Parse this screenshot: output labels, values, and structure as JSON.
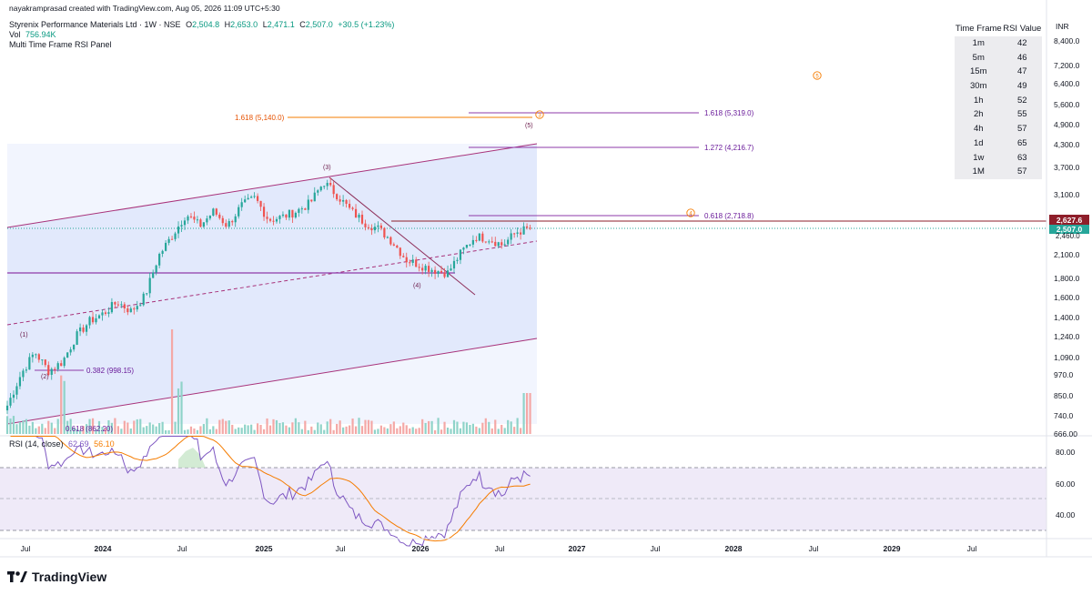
{
  "header": {
    "author_line": "nayakramprasad created with TradingView.com, Aug 05, 2026 11:09 UTC+5:30",
    "symbol": "Styrenix Performance Materials Ltd · 1W · NSE",
    "ohlc_o_label": "O",
    "ohlc_o": "2,504.8",
    "ohlc_h_label": "H",
    "ohlc_h": "2,653.0",
    "ohlc_l_label": "L",
    "ohlc_l": "2,471.1",
    "ohlc_c_label": "C",
    "ohlc_c": "2,507.0",
    "change": "+30.5 (+1.23%)",
    "vol_label": "Vol",
    "vol_value": "756.94K",
    "indicator": "Multi Time Frame RSI Panel"
  },
  "currency": "INR",
  "rsi_table": {
    "headers": [
      "Time Frame",
      "RSI Value"
    ],
    "rows": [
      [
        "1m",
        "42"
      ],
      [
        "5m",
        "46"
      ],
      [
        "15m",
        "47"
      ],
      [
        "30m",
        "49"
      ],
      [
        "1h",
        "52"
      ],
      [
        "2h",
        "55"
      ],
      [
        "4h",
        "57"
      ],
      [
        "1d",
        "65"
      ],
      [
        "1w",
        "63"
      ],
      [
        "1M",
        "57"
      ]
    ]
  },
  "rsi_panel": {
    "label": "RSI (14, close)",
    "value1": "62.69",
    "value2": "56.10",
    "ticks": [
      "80.00",
      "60.00",
      "40.00"
    ]
  },
  "price_badges": {
    "high_line": "2,627.6",
    "last": "2,507.0",
    "hidden": "2,460.0"
  },
  "price_ticks": [
    "8,400.0",
    "7,200.0",
    "6,400.0",
    "5,600.0",
    "4,900.0",
    "4,300.0",
    "3,700.0",
    "3,100.0",
    "2,100.0",
    "1,800.0",
    "1,600.0",
    "1,400.0",
    "1,240.0",
    "1,090.0",
    "970.0",
    "850.0",
    "740.0",
    "666.00"
  ],
  "time_ticks": [
    "Jul",
    "2024",
    "Jul",
    "2025",
    "Jul",
    "2026",
    "Jul",
    "2027",
    "Jul",
    "2028",
    "Jul",
    "2029",
    "Jul"
  ],
  "fib_labels": {
    "f1618a": "1.618 (5,140.0)",
    "f1618b": "1.618 (5,319.0)",
    "f1272": "1.272 (4,216.7)",
    "f0618": "0.618 (2,718.8)",
    "f0382": "0.382 (998.15)",
    "f0618b": "0.618 (862.20)"
  },
  "wave_labels": [
    "(1)",
    "(2)",
    "(3)",
    "(4)",
    "(5)",
    "3",
    "4",
    "5"
  ],
  "logo": "TradingView",
  "chart_data": {
    "type": "candlestick",
    "symbol": "Styrenix Performance Materials Ltd",
    "interval": "1W",
    "x_range": [
      "2023-06",
      "2029-09"
    ],
    "y_scale": "log",
    "y_range": [
      666,
      8400
    ],
    "close_path": [
      {
        "x": "2023-06",
        "y": 800
      },
      {
        "x": "2023-07",
        "y": 980
      },
      {
        "x": "2023-08",
        "y": 1130
      },
      {
        "x": "2023-09",
        "y": 1000
      },
      {
        "x": "2023-10",
        "y": 1060
      },
      {
        "x": "2023-11",
        "y": 1250
      },
      {
        "x": "2023-12",
        "y": 1380
      },
      {
        "x": "2024-01",
        "y": 1450
      },
      {
        "x": "2024-02",
        "y": 1560
      },
      {
        "x": "2024-03",
        "y": 1470
      },
      {
        "x": "2024-04",
        "y": 1620
      },
      {
        "x": "2024-05",
        "y": 2100
      },
      {
        "x": "2024-06",
        "y": 2400
      },
      {
        "x": "2024-07",
        "y": 2750
      },
      {
        "x": "2024-08",
        "y": 2550
      },
      {
        "x": "2024-09",
        "y": 2800
      },
      {
        "x": "2024-10",
        "y": 2550
      },
      {
        "x": "2024-11",
        "y": 2900
      },
      {
        "x": "2024-12",
        "y": 3050
      },
      {
        "x": "2025-01",
        "y": 2650
      },
      {
        "x": "2025-02",
        "y": 2700
      },
      {
        "x": "2025-03",
        "y": 2800
      },
      {
        "x": "2025-04",
        "y": 2950
      },
      {
        "x": "2025-05",
        "y": 3380
      },
      {
        "x": "2025-06",
        "y": 3100
      },
      {
        "x": "2025-07",
        "y": 2800
      },
      {
        "x": "2025-08",
        "y": 2600
      },
      {
        "x": "2025-09",
        "y": 2500
      },
      {
        "x": "2025-10",
        "y": 2300
      },
      {
        "x": "2025-11",
        "y": 2050
      },
      {
        "x": "2025-12",
        "y": 1980
      },
      {
        "x": "2026-01",
        "y": 1920
      },
      {
        "x": "2026-02",
        "y": 1880
      },
      {
        "x": "2026-03",
        "y": 2150
      },
      {
        "x": "2026-04",
        "y": 2380
      },
      {
        "x": "2026-05",
        "y": 2350
      },
      {
        "x": "2026-06",
        "y": 2250
      },
      {
        "x": "2026-07",
        "y": 2450
      },
      {
        "x": "2026-08",
        "y": 2507
      }
    ],
    "rsi": {
      "period": 14,
      "levels": [
        70,
        50,
        30
      ],
      "y_range": [
        20,
        90
      ],
      "last": 62.69,
      "ma_last": 56.1
    }
  }
}
